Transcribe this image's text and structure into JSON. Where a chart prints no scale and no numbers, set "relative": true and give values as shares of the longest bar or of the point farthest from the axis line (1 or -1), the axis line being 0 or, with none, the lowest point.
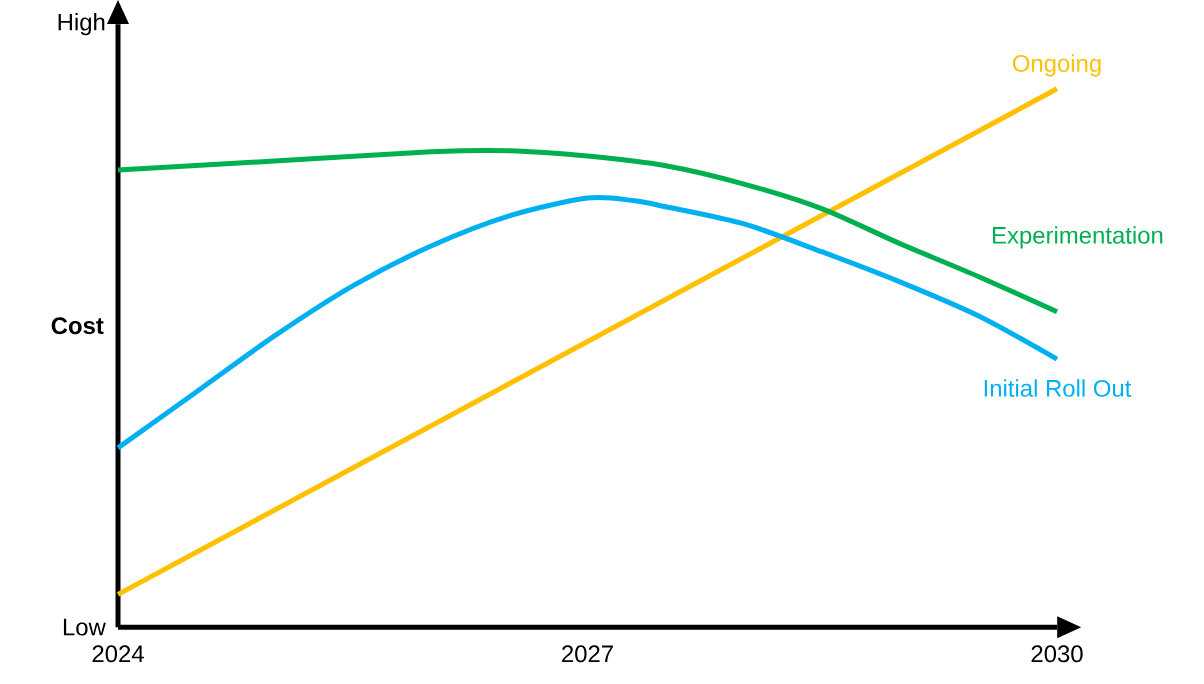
{
  "chart_data": {
    "type": "line",
    "relative": true,
    "ylabel": "Cost",
    "xlim": [
      2024,
      2030
    ],
    "xticks": [
      2024,
      2027,
      2030
    ],
    "annotations": [
      "High",
      "Low"
    ],
    "series": [
      {
        "name": "Ongoing",
        "color": "#ffc000",
        "x": [
          2024,
          2030
        ],
        "values": [
          0.061,
          1.0
        ]
      },
      {
        "name": "Experimentation",
        "color": "#00b050",
        "x": [
          2024,
          2025,
          2026,
          2026.5,
          2027,
          2027.5,
          2028,
          2028.5,
          2029,
          2029.5,
          2030
        ],
        "values": [
          0.849,
          0.866,
          0.883,
          0.885,
          0.875,
          0.857,
          0.823,
          0.777,
          0.712,
          0.651,
          0.586
        ]
      },
      {
        "name": "Initial Roll Out",
        "color": "#00b0f0",
        "x": [
          2024,
          2024.5,
          2025,
          2025.5,
          2026,
          2026.5,
          2027,
          2027.3,
          2027.5,
          2028,
          2028.5,
          2029,
          2029.5,
          2030
        ],
        "values": [
          0.333,
          0.437,
          0.541,
          0.634,
          0.708,
          0.764,
          0.797,
          0.792,
          0.781,
          0.749,
          0.697,
          0.641,
          0.578,
          0.498
        ]
      }
    ]
  }
}
